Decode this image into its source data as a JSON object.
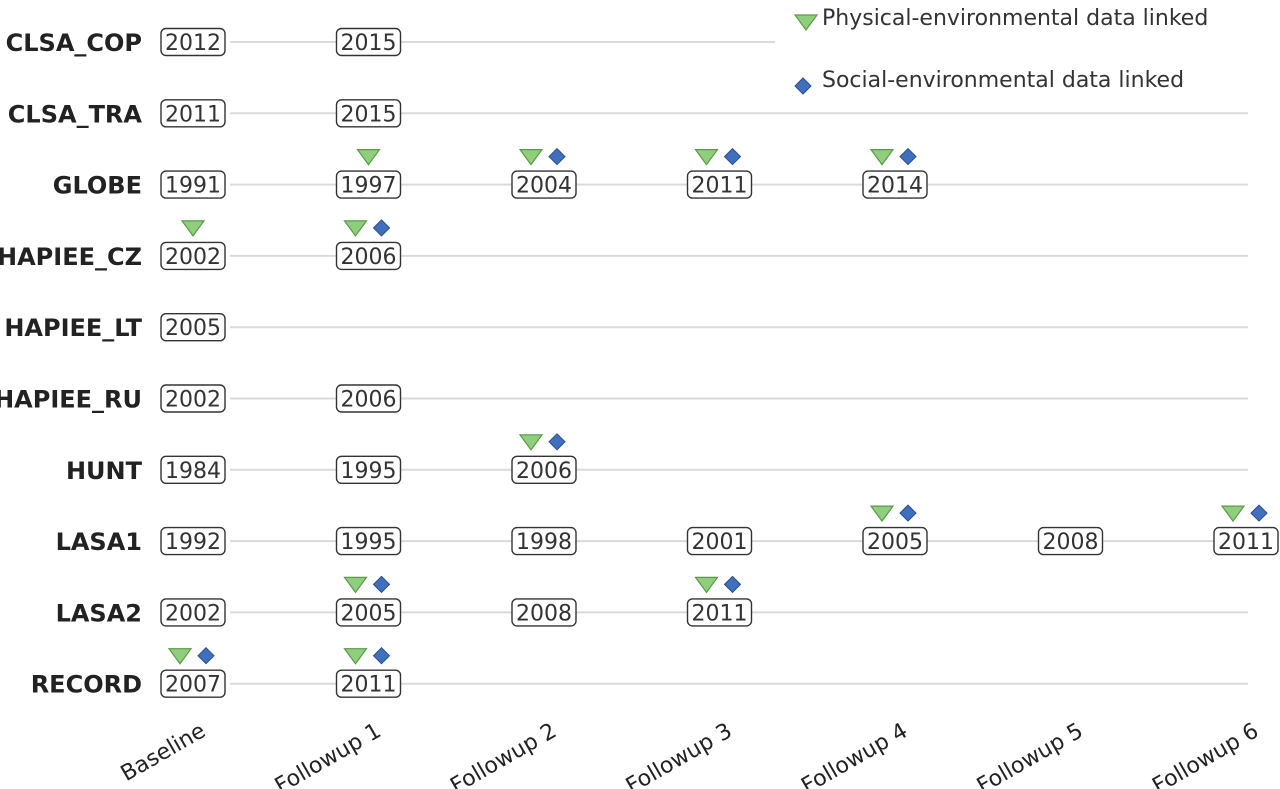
{
  "chart_data": {
    "type": "table",
    "title": "",
    "xlabel": "",
    "ylabel": "",
    "colors": {
      "physical": "#8fce7d",
      "social": "#3f6fbd",
      "gridline": "#dadada",
      "box_stroke": "#333333"
    },
    "legend": {
      "placement": "top-right",
      "entries": [
        {
          "key": "physical",
          "label": "Physical-environmental data linked",
          "marker": "triangle-down-icon"
        },
        {
          "key": "social",
          "label": "Social-environmental data linked",
          "marker": "diamond-icon"
        }
      ]
    },
    "categories": [
      "Baseline",
      "Followup 1",
      "Followup 2",
      "Followup 3",
      "Followup 4",
      "Followup 5",
      "Followup 6"
    ],
    "rows": [
      {
        "name": "CLSA_COP",
        "waves": [
          {
            "wave": 0,
            "year": "2012",
            "physical": false,
            "social": false
          },
          {
            "wave": 1,
            "year": "2015",
            "physical": false,
            "social": false
          }
        ]
      },
      {
        "name": "CLSA_TRA",
        "waves": [
          {
            "wave": 0,
            "year": "2011",
            "physical": false,
            "social": false
          },
          {
            "wave": 1,
            "year": "2015",
            "physical": false,
            "social": false
          }
        ]
      },
      {
        "name": "GLOBE",
        "waves": [
          {
            "wave": 0,
            "year": "1991",
            "physical": false,
            "social": false
          },
          {
            "wave": 1,
            "year": "1997",
            "physical": true,
            "social": false
          },
          {
            "wave": 2,
            "year": "2004",
            "physical": true,
            "social": true
          },
          {
            "wave": 3,
            "year": "2011",
            "physical": true,
            "social": true
          },
          {
            "wave": 4,
            "year": "2014",
            "physical": true,
            "social": true
          }
        ]
      },
      {
        "name": "HAPIEE_CZ",
        "waves": [
          {
            "wave": 0,
            "year": "2002",
            "physical": true,
            "social": false
          },
          {
            "wave": 1,
            "year": "2006",
            "physical": true,
            "social": true
          }
        ]
      },
      {
        "name": "HAPIEE_LT",
        "waves": [
          {
            "wave": 0,
            "year": "2005",
            "physical": false,
            "social": false
          }
        ]
      },
      {
        "name": "HAPIEE_RU",
        "waves": [
          {
            "wave": 0,
            "year": "2002",
            "physical": false,
            "social": false
          },
          {
            "wave": 1,
            "year": "2006",
            "physical": false,
            "social": false
          }
        ]
      },
      {
        "name": "HUNT",
        "waves": [
          {
            "wave": 0,
            "year": "1984",
            "physical": false,
            "social": false
          },
          {
            "wave": 1,
            "year": "1995",
            "physical": false,
            "social": false
          },
          {
            "wave": 2,
            "year": "2006",
            "physical": true,
            "social": true
          }
        ]
      },
      {
        "name": "LASA1",
        "waves": [
          {
            "wave": 0,
            "year": "1992",
            "physical": false,
            "social": false
          },
          {
            "wave": 1,
            "year": "1995",
            "physical": false,
            "social": false
          },
          {
            "wave": 2,
            "year": "1998",
            "physical": false,
            "social": false
          },
          {
            "wave": 3,
            "year": "2001",
            "physical": false,
            "social": false
          },
          {
            "wave": 4,
            "year": "2005",
            "physical": true,
            "social": true
          },
          {
            "wave": 5,
            "year": "2008",
            "physical": false,
            "social": false
          },
          {
            "wave": 6,
            "year": "2011",
            "physical": true,
            "social": true
          }
        ]
      },
      {
        "name": "LASA2",
        "waves": [
          {
            "wave": 0,
            "year": "2002",
            "physical": false,
            "social": false
          },
          {
            "wave": 1,
            "year": "2005",
            "physical": true,
            "social": true
          },
          {
            "wave": 2,
            "year": "2008",
            "physical": false,
            "social": false
          },
          {
            "wave": 3,
            "year": "2011",
            "physical": true,
            "social": true
          }
        ]
      },
      {
        "name": "RECORD",
        "waves": [
          {
            "wave": 0,
            "year": "2007",
            "physical": true,
            "social": true
          },
          {
            "wave": 1,
            "year": "2011",
            "physical": true,
            "social": true
          }
        ]
      }
    ]
  }
}
